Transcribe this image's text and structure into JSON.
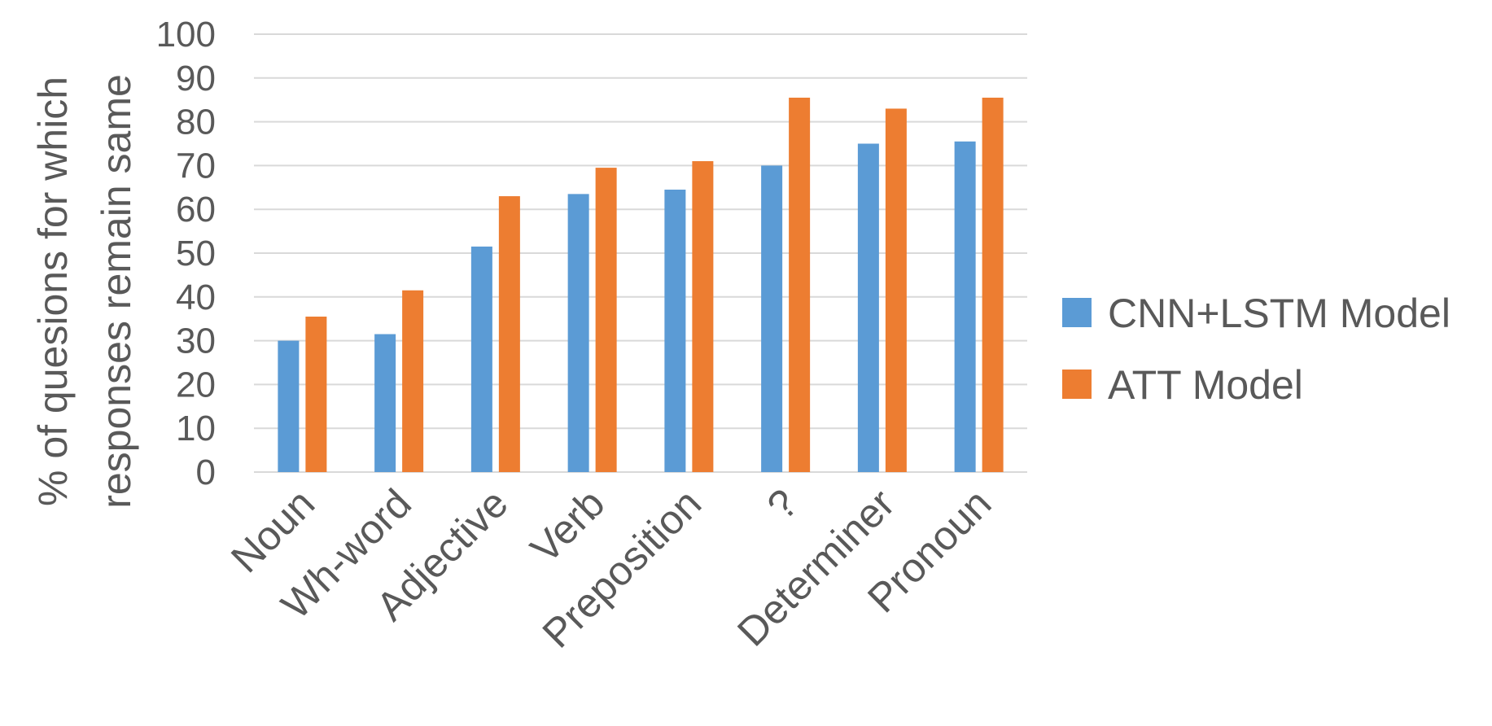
{
  "chart_data": {
    "type": "bar",
    "ylabel": "% of quesions for which responses remain same",
    "ylabel_lines": [
      "% of quesions for which",
      "responses remain same"
    ],
    "ylim": [
      0,
      100
    ],
    "ytick_step": 10,
    "grid": true,
    "legend_position": "right",
    "categories": [
      "Noun",
      "Wh-word",
      "Adjective",
      "Verb",
      "Preposition",
      "?",
      "Determiner",
      "Pronoun"
    ],
    "series": [
      {
        "name": "CNN+LSTM Model",
        "color": "#5b9bd5",
        "values": [
          30,
          31.5,
          51.5,
          63.5,
          64.5,
          70,
          75,
          75.5
        ]
      },
      {
        "name": "ATT Model",
        "color": "#ed7d31",
        "values": [
          35.5,
          41.5,
          63,
          69.5,
          71,
          85.5,
          83,
          85.5
        ]
      }
    ],
    "colors": {
      "gridline": "#d9d9d9",
      "axis_line": "#d9d9d9",
      "text": "#595959"
    }
  }
}
